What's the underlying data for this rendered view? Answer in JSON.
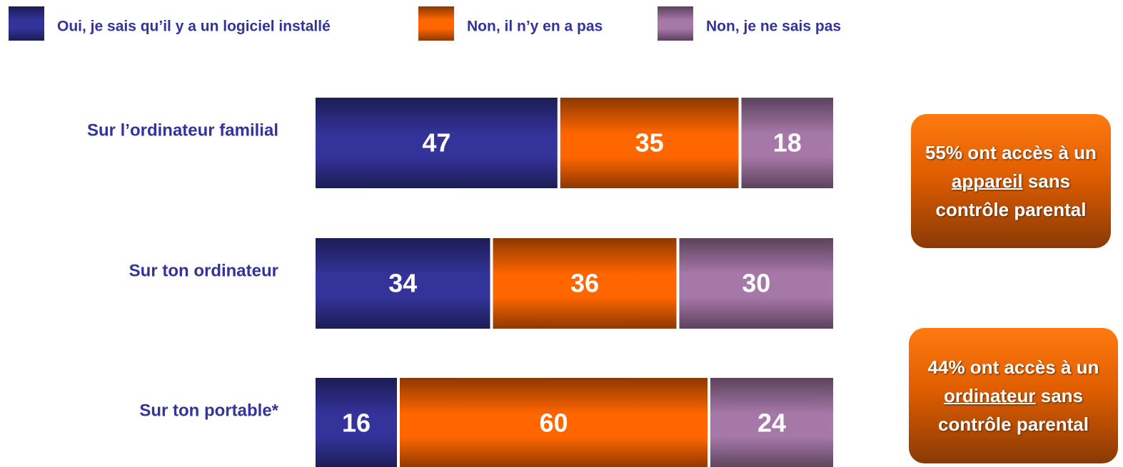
{
  "chart_data": {
    "type": "bar",
    "orientation": "horizontal",
    "stacked": true,
    "categories": [
      "Sur l’ordinateur familial",
      "Sur ton ordinateur",
      "Sur ton portable*"
    ],
    "series": [
      {
        "name": "Oui, je sais qu’il y a un logiciel installé",
        "color": "#333399",
        "values": [
          47,
          34,
          16
        ]
      },
      {
        "name": "Non, il n’y en a pas",
        "color": "#ff6600",
        "values": [
          35,
          36,
          60
        ]
      },
      {
        "name": "Non, je ne sais pas",
        "color": "#a678a8",
        "values": [
          18,
          30,
          24
        ]
      }
    ],
    "xlim": [
      0,
      100
    ],
    "legend": "top",
    "annotations": [
      {
        "before": "55% ont accès à un",
        "emphasis": "appareil",
        "after": "sans contrôle parental"
      },
      {
        "before": "44% ont accès à un",
        "emphasis": "ordinateur",
        "after": "sans contrôle parental"
      }
    ]
  }
}
